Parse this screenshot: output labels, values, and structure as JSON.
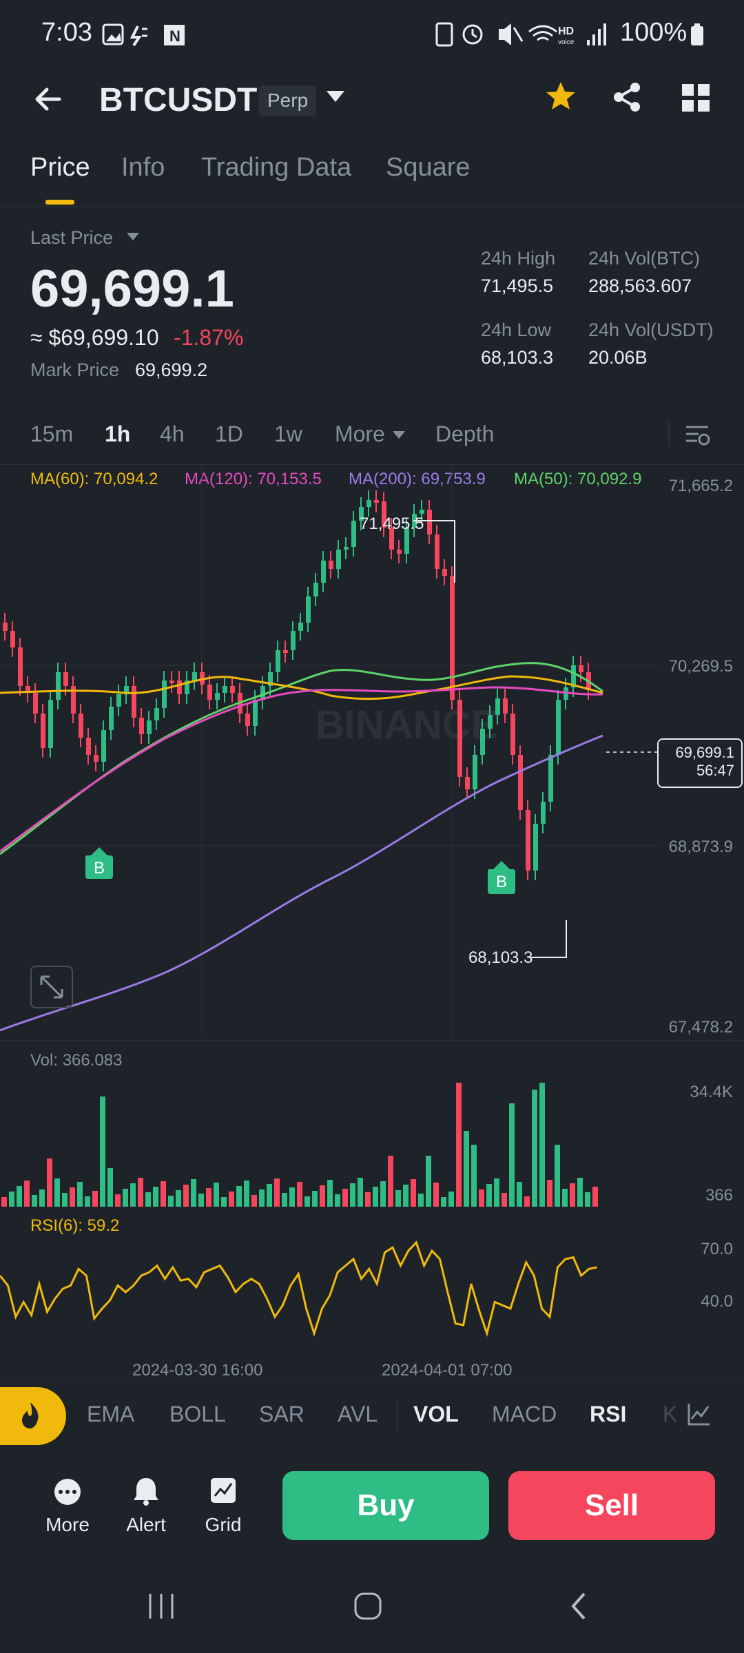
{
  "status_bar": {
    "time": "7:03",
    "battery": "100%"
  },
  "header": {
    "pair": "BTCUSDT",
    "badge": "Perp"
  },
  "tabs": [
    "Price",
    "Info",
    "Trading Data",
    "Square"
  ],
  "price": {
    "last_price_label": "Last Price",
    "last_price": "69,699.1",
    "usd_price": "≈ $69,699.10",
    "change": "-1.87%",
    "mark_label": "Mark Price",
    "mark_price": "69,699.2"
  },
  "stats": {
    "high_label": "24h High",
    "high": "71,495.5",
    "volbtc_label": "24h Vol(BTC)",
    "volbtc": "288,563.607",
    "low_label": "24h Low",
    "low": "68,103.3",
    "volusdt_label": "24h Vol(USDT)",
    "volusdt": "20.06B"
  },
  "timeframes": [
    "15m",
    "1h",
    "4h",
    "1D",
    "1w",
    "More",
    "Depth"
  ],
  "ma": {
    "ma60": "MA(60): 70,094.2",
    "ma120": "MA(120): 70,153.5",
    "ma200": "MA(200): 69,753.9",
    "ma50": "MA(50): 70,092.9"
  },
  "price_axis": [
    "71,665.2",
    "70,269.5",
    "68,873.9",
    "67,478.2"
  ],
  "chart": {
    "high_label": "71,495.5",
    "low_label": "68,103.3",
    "current_price": "69,699.1",
    "countdown": "56:47",
    "marker_b": "B",
    "watermark": "BINANCE"
  },
  "volume": {
    "label": "Vol: 366.083",
    "axis_top": "34.4K",
    "axis_bottom": "366"
  },
  "rsi": {
    "label": "RSI(6): 59.2",
    "axis_top": "70.0",
    "axis_bottom": "40.0"
  },
  "dates": [
    "2024-03-30 16:00",
    "2024-04-01 07:00"
  ],
  "indicators": [
    "EMA",
    "BOLL",
    "SAR",
    "AVL",
    "VOL",
    "MACD",
    "RSI",
    "K"
  ],
  "actions": {
    "more": "More",
    "alert": "Alert",
    "grid": "Grid",
    "buy": "Buy",
    "sell": "Sell"
  },
  "colors": {
    "bg": "#1e2329",
    "up": "#2ebd85",
    "down": "#f6465d",
    "accent": "#f0b90b"
  }
}
